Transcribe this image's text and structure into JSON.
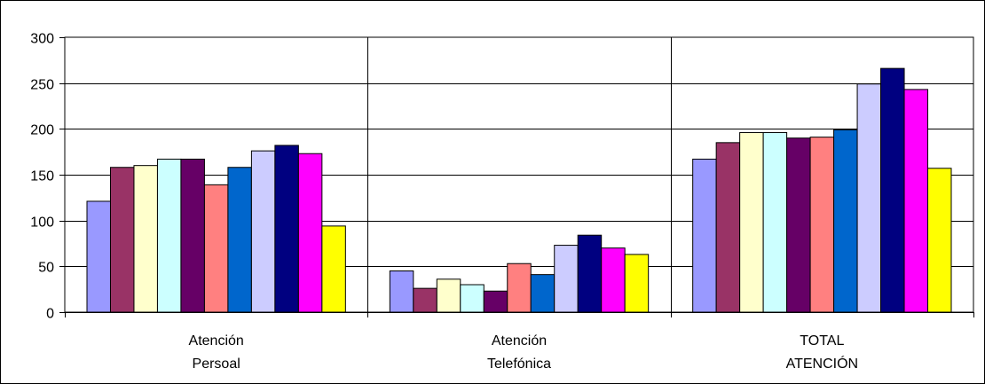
{
  "chart_data": {
    "type": "bar",
    "categories": [
      [
        "Atención",
        "Persoal"
      ],
      [
        "Atención",
        "Telefónica"
      ],
      [
        "TOTAL",
        "ATENCIÓN"
      ]
    ],
    "ylim": [
      0,
      300
    ],
    "yticks": [
      0,
      50,
      100,
      150,
      200,
      250,
      300
    ],
    "grid": true,
    "series_colors": [
      "#9999FF",
      "#993366",
      "#FFFFCC",
      "#CCFFFF",
      "#660066",
      "#FF8080",
      "#0066CC",
      "#CCCCFF",
      "#000080",
      "#FF00FF",
      "#FFFF00"
    ],
    "series": [
      {
        "values": [
          121,
          45,
          167
        ]
      },
      {
        "values": [
          158,
          26,
          185
        ]
      },
      {
        "values": [
          160,
          36,
          196
        ]
      },
      {
        "values": [
          167,
          30,
          196
        ]
      },
      {
        "values": [
          167,
          23,
          190
        ]
      },
      {
        "values": [
          139,
          53,
          191
        ]
      },
      {
        "values": [
          158,
          41,
          199
        ]
      },
      {
        "values": [
          176,
          73,
          249
        ]
      },
      {
        "values": [
          182,
          84,
          266
        ]
      },
      {
        "values": [
          173,
          70,
          243
        ]
      },
      {
        "values": [
          94,
          63,
          157
        ]
      }
    ]
  }
}
